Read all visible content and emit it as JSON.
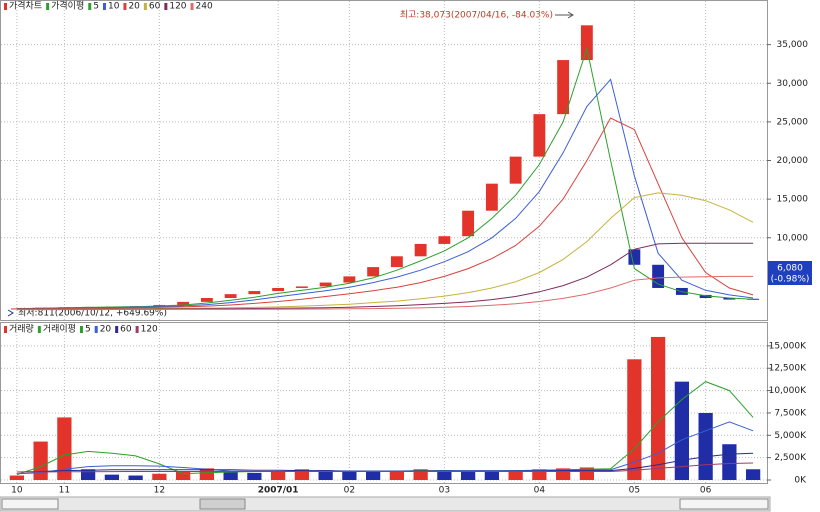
{
  "chart_data": [
    {
      "type": "candlestick",
      "title": "가격차트",
      "ma_title": "가격이평",
      "ylim": [
        0,
        40000
      ],
      "yticks": [
        {
          "value": 10000,
          "label": "10,000"
        },
        {
          "value": 15000,
          "label": "15,000"
        },
        {
          "value": 20000,
          "label": "20,000"
        },
        {
          "value": 25000,
          "label": "25,000"
        },
        {
          "value": 30000,
          "label": "30,000"
        },
        {
          "value": 35000,
          "label": "35,000"
        }
      ],
      "grid": true,
      "up_color": "#e3342b",
      "down_color": "#1f2ea6",
      "open": [
        811,
        850,
        950,
        1000,
        1050,
        1100,
        1150,
        1300,
        1700,
        2200,
        2700,
        3100,
        3500,
        3700,
        4200,
        5000,
        6200,
        7600,
        9200,
        10200,
        13500,
        17000,
        20500,
        26000,
        33000,
        null,
        8500,
        6500,
        3500,
        2600,
        2200,
        2100
      ],
      "close": [
        850,
        950,
        1000,
        1050,
        1100,
        1150,
        1300,
        1700,
        2200,
        2700,
        3100,
        3500,
        3700,
        4200,
        5000,
        6200,
        7600,
        9200,
        10200,
        13500,
        17000,
        20500,
        26000,
        33000,
        37500,
        null,
        6500,
        3500,
        2600,
        2200,
        2000,
        2000
      ],
      "series": [
        {
          "name": "5",
          "color": "#2ca02c",
          "values": [
            830,
            870,
            930,
            980,
            1030,
            1080,
            1160,
            1300,
            1550,
            1900,
            2300,
            2800,
            3200,
            3600,
            4100,
            4800,
            5800,
            7000,
            8300,
            10000,
            12500,
            15500,
            19500,
            25000,
            34500,
            20000,
            6000,
            4000,
            3000,
            2500,
            2200,
            2050
          ]
        },
        {
          "name": "10",
          "color": "#3b5fd6",
          "values": [
            820,
            850,
            890,
            930,
            970,
            1020,
            1080,
            1180,
            1350,
            1600,
            1950,
            2350,
            2750,
            3150,
            3600,
            4200,
            4900,
            5800,
            6900,
            8200,
            10000,
            12500,
            16000,
            21000,
            27000,
            30500,
            18000,
            8000,
            4500,
            3200,
            2600,
            2200
          ]
        },
        {
          "name": "20",
          "color": "#d9413b",
          "values": [
            800,
            820,
            840,
            870,
            900,
            940,
            990,
            1050,
            1150,
            1300,
            1500,
            1750,
            2050,
            2400,
            2750,
            3150,
            3600,
            4200,
            5000,
            6000,
            7300,
            9000,
            11500,
            15000,
            20000,
            25500,
            24000,
            17000,
            10000,
            5500,
            3500,
            2600
          ]
        },
        {
          "name": "60",
          "color": "#c9b23a",
          "values": [
            780,
            785,
            790,
            800,
            810,
            820,
            840,
            860,
            890,
            930,
            980,
            1050,
            1150,
            1250,
            1400,
            1600,
            1800,
            2100,
            2450,
            2900,
            3500,
            4300,
            5500,
            7200,
            9500,
            12500,
            15200,
            15800,
            15500,
            14800,
            13600,
            12000
          ]
        },
        {
          "name": "120",
          "color": "#7d2b5e",
          "values": [
            760,
            762,
            765,
            768,
            772,
            776,
            780,
            790,
            800,
            820,
            840,
            870,
            900,
            950,
            1000,
            1100,
            1200,
            1350,
            1500,
            1700,
            2000,
            2400,
            3000,
            3800,
            4900,
            6500,
            8500,
            9200,
            9300,
            9300,
            9300,
            9300
          ]
        },
        {
          "name": "240",
          "color": "#e06a6a",
          "values": [
            700,
            700,
            705,
            705,
            710,
            710,
            715,
            720,
            725,
            730,
            740,
            750,
            760,
            780,
            800,
            830,
            870,
            920,
            1000,
            1100,
            1250,
            1450,
            1750,
            2150,
            2700,
            3500,
            4500,
            4800,
            4900,
            4950,
            5000,
            5000
          ]
        }
      ],
      "annotations": [
        "최고:38,073(2007/04/16, -84.03%)",
        "최저:811(2006/10/12, +649.69%)"
      ],
      "current_price": "6,080",
      "current_change": "(-0.98%)"
    },
    {
      "type": "bar",
      "title": "거래량",
      "ma_title": "거래이평",
      "categories": [
        "10",
        null,
        "11",
        null,
        null,
        null,
        "12",
        null,
        null,
        null,
        null,
        "2007/01",
        null,
        null,
        "02",
        null,
        null,
        null,
        "03",
        null,
        null,
        null,
        "04",
        null,
        null,
        null,
        "05",
        null,
        null,
        "06",
        null,
        null
      ],
      "ylim": [
        0,
        17000
      ],
      "yticks": [
        {
          "value": 0,
          "label": "0K"
        },
        {
          "value": 2500,
          "label": "2,500K"
        },
        {
          "value": 5000,
          "label": "5,000K"
        },
        {
          "value": 7500,
          "label": "7,500K"
        },
        {
          "value": 10000,
          "label": "10,000K"
        },
        {
          "value": 12500,
          "label": "12,500K"
        },
        {
          "value": 15000,
          "label": "15,000K"
        }
      ],
      "grid": true,
      "values": [
        500,
        4300,
        7000,
        1200,
        600,
        500,
        700,
        900,
        1300,
        1000,
        800,
        900,
        1200,
        1100,
        1000,
        900,
        1000,
        1200,
        1100,
        1000,
        900,
        1000,
        1200,
        1300,
        1400,
        null,
        13500,
        16000,
        11000,
        7500,
        4000,
        1200
      ],
      "series": [
        {
          "name": "5",
          "color": "#2ca02c",
          "values": [
            600,
            1500,
            2800,
            3200,
            3000,
            2700,
            1800,
            700,
            800,
            900,
            950,
            950,
            1000,
            1000,
            1000,
            1000,
            1000,
            1050,
            1050,
            1000,
            1000,
            1050,
            1100,
            1150,
            1200,
            1250,
            3500,
            6500,
            9000,
            11000,
            10000,
            7000
          ]
        },
        {
          "name": "20",
          "color": "#3b5fd6",
          "values": [
            700,
            800,
            1200,
            1500,
            1600,
            1600,
            1550,
            1400,
            1200,
            1000,
            950,
            950,
            950,
            1000,
            1000,
            1000,
            1000,
            1000,
            1050,
            1050,
            1050,
            1050,
            1100,
            1100,
            1150,
            1150,
            2000,
            3000,
            4500,
            5500,
            6500,
            5500
          ]
        },
        {
          "name": "60",
          "color": "#2b2b8f",
          "values": [
            900,
            950,
            1050,
            1100,
            1150,
            1150,
            1150,
            1150,
            1150,
            1150,
            1100,
            1100,
            1050,
            1050,
            1000,
            1000,
            1000,
            1000,
            1000,
            1000,
            1000,
            1000,
            1000,
            1050,
            1050,
            1050,
            1300,
            1700,
            2200,
            2600,
            2900,
            3000
          ]
        },
        {
          "name": "120",
          "color": "#9b3b6e",
          "values": [
            900,
            900,
            920,
            930,
            940,
            950,
            950,
            950,
            950,
            950,
            950,
            950,
            950,
            950,
            950,
            950,
            950,
            950,
            950,
            950,
            950,
            950,
            950,
            950,
            950,
            950,
            1100,
            1300,
            1500,
            1700,
            1850,
            1900
          ]
        }
      ]
    }
  ]
}
